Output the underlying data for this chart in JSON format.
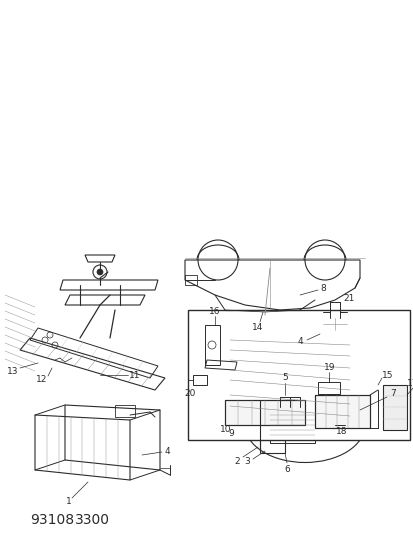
{
  "title_line1": "93108",
  "title_line2": "3300",
  "bg_color": "#ffffff",
  "line_color": "#2b2b2b",
  "gray": "#888888",
  "lgray": "#bbbbbb",
  "title_fontsize": 11,
  "label_fontsize": 6.5
}
